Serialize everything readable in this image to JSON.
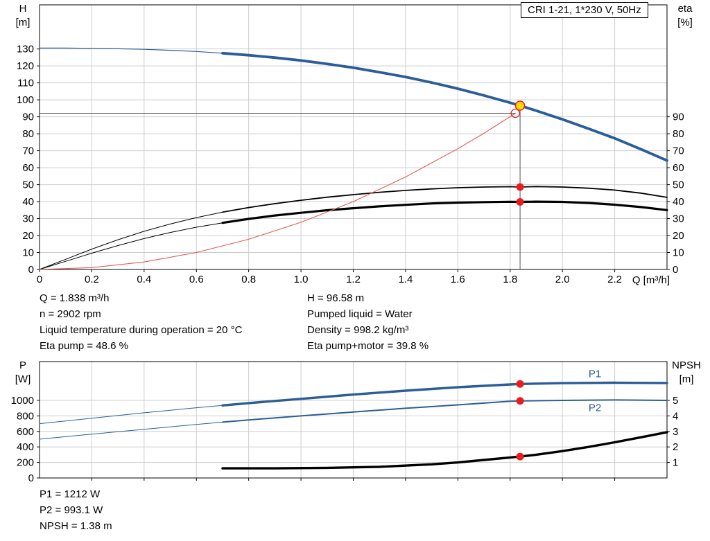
{
  "title_box": "CRI 1-21, 1*230 V, 50Hz",
  "colors": {
    "curve_blue": "#2b5d97",
    "curve_black": "#000000",
    "curve_red": "#e05a50",
    "marker_red": "#e81e1e",
    "marker_yellow": "#ffd800",
    "grid": "#cdcdcd",
    "axis": "#000000",
    "guide": "#555555"
  },
  "corner_labels": {
    "top_left_1": "H",
    "top_left_2": "[m]",
    "top_right_1": "eta",
    "top_right_2": "[%]",
    "x_axis": "Q [m³/h]",
    "bottom_left_1": "P",
    "bottom_left_2": "[W]",
    "bottom_right_1": "NPSH",
    "bottom_right_2": "[m]"
  },
  "info_top": {
    "left": [
      "Q = 1.838 m³/h",
      "n = 2902 rpm",
      "Liquid temperature during operation = 20 °C",
      "Eta pump = 48.6 %"
    ],
    "right": [
      "H = 96.58 m",
      "Pumped liquid = Water",
      "Density = 998.2 kg/m³",
      "Eta pump+motor = 39.8 %"
    ]
  },
  "info_bottom": [
    "P1 = 1212 W",
    "P2 = 993.1 W",
    "NPSH = 1.38 m"
  ],
  "chart_data": [
    {
      "type": "line",
      "title": "CRI 1-21, 1*230 V, 50Hz",
      "grid": true,
      "x": {
        "label": "Q [m³/h]",
        "min": 0,
        "max": 2.4,
        "ticks": [
          [
            0,
            "0"
          ],
          [
            0.2,
            "0.2"
          ],
          [
            0.4,
            "0.4"
          ],
          [
            0.6,
            "0.6"
          ],
          [
            0.8,
            "0.8"
          ],
          [
            1,
            "1.0"
          ],
          [
            1.2,
            "1.2"
          ],
          [
            1.4,
            "1.4"
          ],
          [
            1.6,
            "1.6"
          ],
          [
            1.8,
            "1.8"
          ],
          [
            2,
            "2.0"
          ],
          [
            2.2,
            "2.2"
          ]
        ]
      },
      "y_left": {
        "label": "H [m]",
        "min": 0,
        "max": 156,
        "ticks": [
          [
            0,
            "0"
          ],
          [
            10,
            "10"
          ],
          [
            20,
            "20"
          ],
          [
            30,
            "30"
          ],
          [
            40,
            "40"
          ],
          [
            50,
            "50"
          ],
          [
            60,
            "60"
          ],
          [
            70,
            "70"
          ],
          [
            80,
            "80"
          ],
          [
            90,
            "90"
          ],
          [
            100,
            "100"
          ],
          [
            110,
            "110"
          ],
          [
            120,
            "120"
          ],
          [
            130,
            "130"
          ]
        ]
      },
      "y_right": {
        "label": "eta [%]",
        "min": 0,
        "max": 156,
        "ticks": [
          [
            0,
            "0"
          ],
          [
            10,
            "10"
          ],
          [
            20,
            "20"
          ],
          [
            30,
            "30"
          ],
          [
            40,
            "40"
          ],
          [
            50,
            "50"
          ],
          [
            60,
            "60"
          ],
          [
            70,
            "70"
          ],
          [
            80,
            "80"
          ],
          [
            90,
            "90"
          ]
        ]
      },
      "series": [
        {
          "name": "H-curve",
          "axis": "left",
          "color": "#2b5d97",
          "thin": 1.2,
          "thick": 3.8,
          "split_x": 0.7,
          "points": [
            [
              0,
              130.5
            ],
            [
              0.1,
              130.5
            ],
            [
              0.2,
              130.4
            ],
            [
              0.3,
              130.1
            ],
            [
              0.4,
              129.8
            ],
            [
              0.5,
              129.2
            ],
            [
              0.6,
              128.5
            ],
            [
              0.7,
              127.5
            ],
            [
              0.8,
              126.3
            ],
            [
              0.9,
              124.9
            ],
            [
              1,
              123.2
            ],
            [
              1.1,
              121.2
            ],
            [
              1.2,
              118.9
            ],
            [
              1.3,
              116.3
            ],
            [
              1.4,
              113.5
            ],
            [
              1.5,
              110.2
            ],
            [
              1.6,
              106.6
            ],
            [
              1.7,
              102.6
            ],
            [
              1.8,
              98.3
            ],
            [
              1.838,
              96.58
            ],
            [
              1.9,
              93.6
            ],
            [
              2,
              88.5
            ],
            [
              2.1,
              83
            ],
            [
              2.2,
              77.3
            ],
            [
              2.3,
              70.9
            ],
            [
              2.4,
              64.2
            ]
          ]
        },
        {
          "name": "eta-pump",
          "axis": "left",
          "color": "#000000",
          "thin": 1,
          "thick": 1.8,
          "split_x": 0.7,
          "points": [
            [
              0,
              0
            ],
            [
              0.1,
              6
            ],
            [
              0.2,
              12
            ],
            [
              0.3,
              17.5
            ],
            [
              0.4,
              22.5
            ],
            [
              0.5,
              26.8
            ],
            [
              0.6,
              30.6
            ],
            [
              0.7,
              33.8
            ],
            [
              0.8,
              36.5
            ],
            [
              0.9,
              38.8
            ],
            [
              1,
              40.8
            ],
            [
              1.1,
              42.6
            ],
            [
              1.2,
              44.1
            ],
            [
              1.3,
              45.5
            ],
            [
              1.4,
              46.6
            ],
            [
              1.5,
              47.5
            ],
            [
              1.6,
              48.2
            ],
            [
              1.7,
              48.6
            ],
            [
              1.8,
              48.8
            ],
            [
              1.838,
              48.6
            ],
            [
              1.9,
              48.9
            ],
            [
              2,
              48.6
            ],
            [
              2.1,
              47.9
            ],
            [
              2.2,
              46.8
            ],
            [
              2.3,
              45
            ],
            [
              2.4,
              42.5
            ]
          ]
        },
        {
          "name": "eta-pump-motor",
          "axis": "left",
          "color": "#000000",
          "thin": 1,
          "thick": 3.2,
          "split_x": 0.7,
          "points": [
            [
              0,
              0
            ],
            [
              0.1,
              4.8
            ],
            [
              0.2,
              9.6
            ],
            [
              0.3,
              14.1
            ],
            [
              0.4,
              18.2
            ],
            [
              0.5,
              21.8
            ],
            [
              0.6,
              24.9
            ],
            [
              0.7,
              27.5
            ],
            [
              0.8,
              29.8
            ],
            [
              0.9,
              31.8
            ],
            [
              1,
              33.4
            ],
            [
              1.1,
              34.9
            ],
            [
              1.2,
              36.1
            ],
            [
              1.3,
              37.2
            ],
            [
              1.4,
              38.1
            ],
            [
              1.5,
              38.9
            ],
            [
              1.6,
              39.4
            ],
            [
              1.7,
              39.7
            ],
            [
              1.8,
              39.9
            ],
            [
              1.838,
              39.8
            ],
            [
              1.9,
              40
            ],
            [
              2,
              39.8
            ],
            [
              2.1,
              39.2
            ],
            [
              2.2,
              38.2
            ],
            [
              2.3,
              36.8
            ],
            [
              2.4,
              35
            ]
          ]
        },
        {
          "name": "system-curve",
          "axis": "left",
          "color": "#e05a50",
          "thin": 1.1,
          "thick": 1.1,
          "split_x": null,
          "points": [
            [
              0,
              0
            ],
            [
              0.2,
              1.1
            ],
            [
              0.4,
              4.4
            ],
            [
              0.6,
              10
            ],
            [
              0.8,
              17.8
            ],
            [
              1,
              27.8
            ],
            [
              1.2,
              40
            ],
            [
              1.4,
              54.5
            ],
            [
              1.6,
              71.2
            ],
            [
              1.7,
              80.3
            ],
            [
              1.8,
              90.1
            ],
            [
              1.82,
              92.1
            ]
          ]
        }
      ],
      "guides": [
        {
          "type": "v",
          "x": 1.838,
          "y1": 0,
          "y2": 96.58
        },
        {
          "type": "h",
          "y": 92.1,
          "x1": 0,
          "x2": 1.82
        }
      ],
      "markers": [
        {
          "x": 1.82,
          "y": 92.1,
          "axis": "left",
          "style": "open"
        },
        {
          "x": 1.838,
          "y": 96.58,
          "axis": "left",
          "style": "operating"
        },
        {
          "x": 1.838,
          "y": 48.6,
          "axis": "left",
          "style": "red"
        },
        {
          "x": 1.838,
          "y": 39.8,
          "axis": "left",
          "style": "red"
        }
      ],
      "labels": []
    },
    {
      "type": "line",
      "title": "",
      "grid": true,
      "x": {
        "label": "Q [m³/h]",
        "min": 0,
        "max": 2.4,
        "ticks": [
          [
            0.2,
            ""
          ],
          [
            0.4,
            ""
          ],
          [
            0.6,
            ""
          ],
          [
            0.8,
            ""
          ],
          [
            1,
            ""
          ],
          [
            1.2,
            ""
          ],
          [
            1.4,
            ""
          ],
          [
            1.6,
            ""
          ],
          [
            1.8,
            ""
          ],
          [
            2,
            ""
          ],
          [
            2.2,
            ""
          ]
        ]
      },
      "y_left": {
        "label": "P [W]",
        "min": 0,
        "max": 1500,
        "ticks": [
          [
            0,
            "0"
          ],
          [
            200,
            "200"
          ],
          [
            400,
            "400"
          ],
          [
            600,
            "600"
          ],
          [
            800,
            "800"
          ],
          [
            1000,
            "1000"
          ]
        ]
      },
      "y_right": {
        "label": "NPSH [m]",
        "min": 0,
        "max": 7.5,
        "ticks": [
          [
            1,
            "1"
          ],
          [
            2,
            "2"
          ],
          [
            3,
            "3"
          ],
          [
            4,
            "4"
          ],
          [
            5,
            "5"
          ]
        ]
      },
      "series": [
        {
          "name": "P1",
          "axis": "left",
          "color": "#2b5d97",
          "thin": 1,
          "thick": 3.4,
          "split_x": 0.7,
          "points": [
            [
              0,
              700
            ],
            [
              0.2,
              770
            ],
            [
              0.4,
              840
            ],
            [
              0.6,
              905
            ],
            [
              0.7,
              935
            ],
            [
              0.8,
              965
            ],
            [
              1,
              1020
            ],
            [
              1.2,
              1075
            ],
            [
              1.4,
              1125
            ],
            [
              1.6,
              1170
            ],
            [
              1.8,
              1205
            ],
            [
              1.838,
              1212
            ],
            [
              2,
              1222
            ],
            [
              2.2,
              1228
            ],
            [
              2.4,
              1224
            ]
          ]
        },
        {
          "name": "P2",
          "axis": "left",
          "color": "#2b5d97",
          "thin": 1,
          "thick": 2,
          "split_x": 0.7,
          "points": [
            [
              0,
              500
            ],
            [
              0.2,
              565
            ],
            [
              0.4,
              628
            ],
            [
              0.6,
              690
            ],
            [
              0.7,
              720
            ],
            [
              0.8,
              748
            ],
            [
              1,
              800
            ],
            [
              1.2,
              850
            ],
            [
              1.4,
              898
            ],
            [
              1.6,
              942
            ],
            [
              1.8,
              988
            ],
            [
              1.838,
              993.1
            ],
            [
              2,
              1000
            ],
            [
              2.2,
              1005
            ],
            [
              2.4,
              1000
            ]
          ]
        },
        {
          "name": "NPSH",
          "axis": "right",
          "color": "#000000",
          "thin": 1,
          "thick": 3.4,
          "split_x": null,
          "points": [
            [
              0.7,
              0.62
            ],
            [
              0.9,
              0.62
            ],
            [
              1.1,
              0.65
            ],
            [
              1.3,
              0.72
            ],
            [
              1.5,
              0.88
            ],
            [
              1.6,
              1
            ],
            [
              1.7,
              1.16
            ],
            [
              1.8,
              1.32
            ],
            [
              1.838,
              1.38
            ],
            [
              1.9,
              1.5
            ],
            [
              2,
              1.73
            ],
            [
              2.1,
              2
            ],
            [
              2.2,
              2.3
            ],
            [
              2.3,
              2.62
            ],
            [
              2.4,
              2.95
            ]
          ]
        }
      ],
      "guides": [],
      "markers": [
        {
          "x": 1.838,
          "y": 1212,
          "axis": "left",
          "style": "red"
        },
        {
          "x": 1.838,
          "y": 993.1,
          "axis": "left",
          "style": "red"
        },
        {
          "x": 1.838,
          "y": 1.38,
          "axis": "right",
          "style": "red"
        }
      ],
      "labels": [
        {
          "text": "P1",
          "x": 2.1,
          "y": 1300,
          "axis": "left",
          "color": "#2b5d97"
        },
        {
          "text": "P2",
          "x": 2.1,
          "y": 860,
          "axis": "left",
          "color": "#2b5d97"
        }
      ]
    }
  ]
}
